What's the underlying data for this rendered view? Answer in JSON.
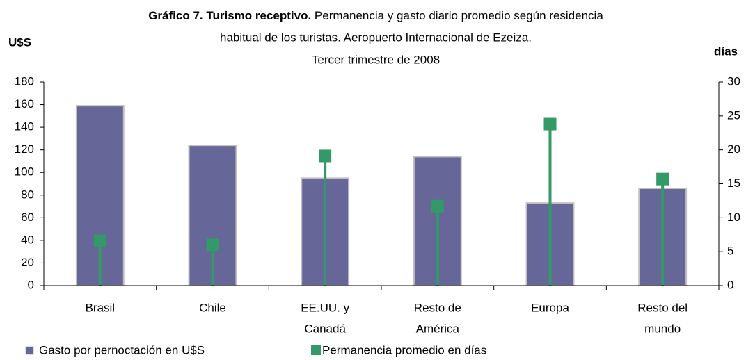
{
  "chart_data": {
    "type": "bar_line",
    "title": [
      "Gráfico 7. Turismo receptivo.",
      "Permanencia y gasto diario promedio según residencia",
      "habitual de los turistas. Aeropuerto Internacional de Ezeiza.",
      "Tercer trimestre de 2008"
    ],
    "ylabel": "U$S",
    "y2label": "días",
    "categories": [
      [
        "Brasil"
      ],
      [
        "Chile"
      ],
      [
        "EE.UU. y",
        "Canadá"
      ],
      [
        "Resto de",
        "América"
      ],
      [
        "Europa"
      ],
      [
        "Resto del",
        "mundo"
      ]
    ],
    "series": [
      {
        "name": "Gasto por pernoctación en U$S",
        "color": "#666699",
        "values": [
          159,
          124,
          95,
          114,
          73,
          86
        ]
      },
      {
        "name": "Permanencia promedio en días",
        "color": "#339966",
        "axis": "y2",
        "values": [
          6.6,
          6.0,
          19.1,
          11.7,
          23.8,
          15.7
        ]
      }
    ],
    "ylim": [
      0,
      180
    ],
    "yticks": [
      0,
      20,
      40,
      60,
      80,
      100,
      120,
      140,
      160,
      180
    ],
    "y2lim": [
      0,
      30
    ],
    "y2ticks": [
      0,
      5,
      10,
      15,
      20,
      25,
      30
    ]
  }
}
